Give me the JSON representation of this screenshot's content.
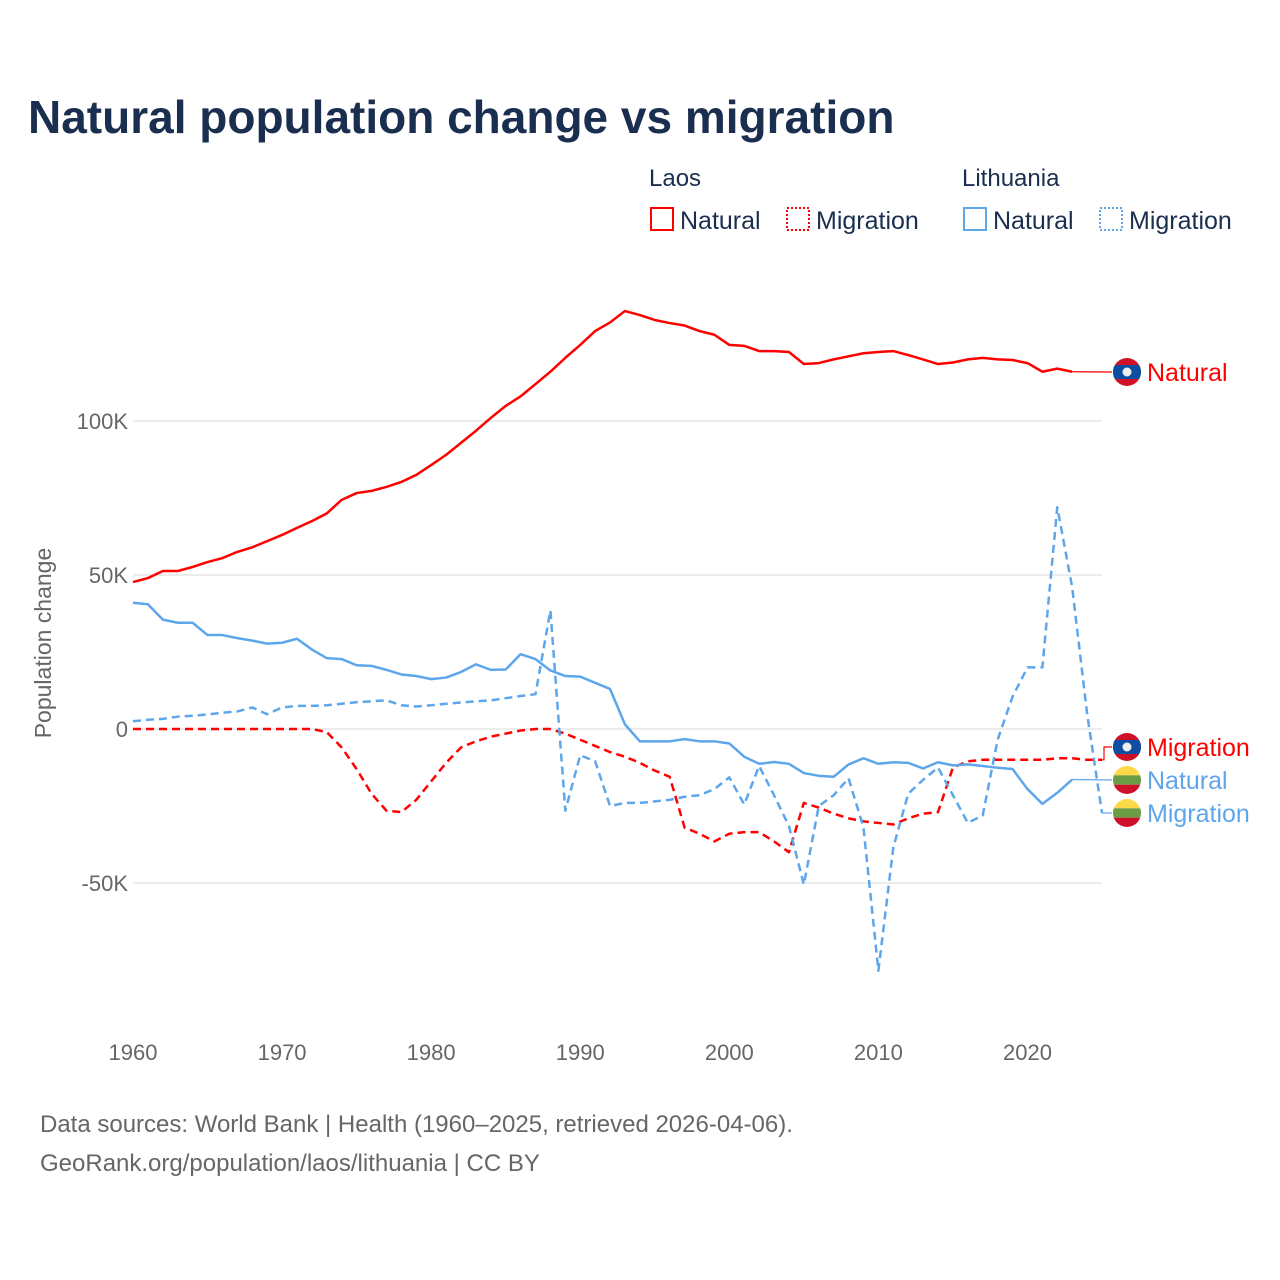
{
  "chart_data": {
    "type": "line",
    "title": "Natural population change vs migration",
    "ylabel": "Population change",
    "xlabel": "",
    "xlim": [
      1960,
      2025
    ],
    "ylim": [
      -95000,
      145000
    ],
    "grid": true,
    "x_ticks": [
      1960,
      1970,
      1980,
      1990,
      2000,
      2010,
      2020
    ],
    "x_tick_labels": [
      "1960",
      "1970",
      "1980",
      "1990",
      "2000",
      "2010",
      "2020"
    ],
    "y_ticks": [
      -50000,
      0,
      50000,
      100000
    ],
    "y_tick_labels": [
      "-50K",
      "0",
      "50K",
      "100K"
    ],
    "legend_placement": "top-right",
    "legend": {
      "groups": [
        {
          "country": "Laos",
          "items": [
            "Natural",
            "Migration"
          ]
        },
        {
          "country": "Lithuania",
          "items": [
            "Natural",
            "Migration"
          ]
        }
      ]
    },
    "series": [
      {
        "name": "Laos Natural",
        "country": "Laos",
        "label": "Natural",
        "color": "#ff0000",
        "dash": false,
        "start_year": 1960,
        "values": [
          47700,
          49000,
          51300,
          51300,
          52600,
          54200,
          55500,
          57500,
          59000,
          61000,
          63000,
          65300,
          67500,
          70000,
          74400,
          76600,
          77300,
          78600,
          80200,
          82500,
          85700,
          89000,
          92900,
          96800,
          101000,
          104900,
          108000,
          112000,
          116000,
          120500,
          124700,
          129200,
          132000,
          135700,
          134400,
          132800,
          131800,
          131000,
          129200,
          128000,
          124700,
          124400,
          122700,
          122700,
          122400,
          118500,
          118800,
          120000,
          121000,
          122000,
          122400,
          122700,
          121400,
          120000,
          118500,
          119000,
          120000,
          120500,
          120000,
          119800,
          118800,
          116000,
          117000,
          116000
        ]
      },
      {
        "name": "Laos Migration",
        "country": "Laos",
        "label": "Migration",
        "color": "#ff0000",
        "dash": true,
        "start_year": 1960,
        "values": [
          0,
          0,
          0,
          0,
          0,
          0,
          0,
          0,
          0,
          0,
          0,
          0,
          0,
          -1000,
          -6000,
          -13000,
          -21000,
          -26500,
          -27000,
          -23000,
          -17000,
          -11000,
          -6000,
          -4000,
          -2500,
          -1500,
          -500,
          0,
          0,
          -1500,
          -3500,
          -5500,
          -7500,
          -9000,
          -11000,
          -13500,
          -15500,
          -32000,
          -34000,
          -36500,
          -34000,
          -33500,
          -33500,
          -36500,
          -40000,
          -24000,
          -25500,
          -27500,
          -29000,
          -30000,
          -30500,
          -31000,
          -29000,
          -27500,
          -27000,
          -12500,
          -10500,
          -10000,
          -10000,
          -10000,
          -10000,
          -10000,
          -9500,
          -9500,
          -10000,
          -10000
        ]
      },
      {
        "name": "Lithuania Natural",
        "country": "Lithuania",
        "label": "Natural",
        "color": "#5ea6eb",
        "dash": false,
        "start_year": 1960,
        "values": [
          41000,
          40500,
          35500,
          34500,
          34500,
          30500,
          30500,
          29500,
          28700,
          27700,
          28000,
          29300,
          25800,
          23000,
          22700,
          20700,
          20500,
          19200,
          17700,
          17200,
          16200,
          16700,
          18500,
          21000,
          19200,
          19300,
          24300,
          22700,
          19000,
          17200,
          17000,
          15000,
          13000,
          1500,
          -4000,
          -4000,
          -4000,
          -3300,
          -4000,
          -4000,
          -4700,
          -9000,
          -11300,
          -10700,
          -11300,
          -14300,
          -15200,
          -15500,
          -11500,
          -9500,
          -11300,
          -10800,
          -11000,
          -12800,
          -10800,
          -11800,
          -11500,
          -12000,
          -12600,
          -13000,
          -19500,
          -24300,
          -20700,
          -16400
        ]
      },
      {
        "name": "Lithuania Migration",
        "country": "Lithuania",
        "label": "Migration",
        "color": "#5ea6eb",
        "dash": true,
        "start_year": 1960,
        "values": [
          2500,
          3000,
          3300,
          4000,
          4300,
          4700,
          5300,
          5700,
          7000,
          4800,
          7000,
          7500,
          7500,
          7700,
          8200,
          8700,
          9000,
          9300,
          7700,
          7300,
          7700,
          8200,
          8600,
          9000,
          9300,
          10000,
          10700,
          11300,
          38500,
          -26500,
          -8500,
          -10500,
          -25000,
          -24000,
          -24000,
          -23500,
          -23000,
          -22000,
          -21500,
          -19500,
          -15700,
          -24500,
          -12000,
          -21500,
          -31500,
          -50500,
          -25000,
          -21500,
          -16000,
          -32000,
          -78500,
          -38500,
          -21000,
          -16500,
          -12500,
          -21500,
          -30500,
          -28000,
          -3500,
          10500,
          20000,
          20000,
          72000,
          46000,
          5000,
          -27300
        ]
      }
    ],
    "end_labels": [
      {
        "text": "Natural",
        "series": "Laos Natural",
        "flag": "laos-flag"
      },
      {
        "text": "Migration",
        "series": "Laos Migration",
        "flag": "laos-flag"
      },
      {
        "text": "Natural",
        "series": "Lithuania Natural",
        "flag": "lithuania-flag"
      },
      {
        "text": "Migration",
        "series": "Lithuania Migration",
        "flag": "lithuania-flag"
      }
    ]
  },
  "source": {
    "line1": "Data sources: World Bank | Health (1960–2025, retrieved 2026-04-06).",
    "line2": "GeoRank.org/population/laos/lithuania | CC BY"
  }
}
